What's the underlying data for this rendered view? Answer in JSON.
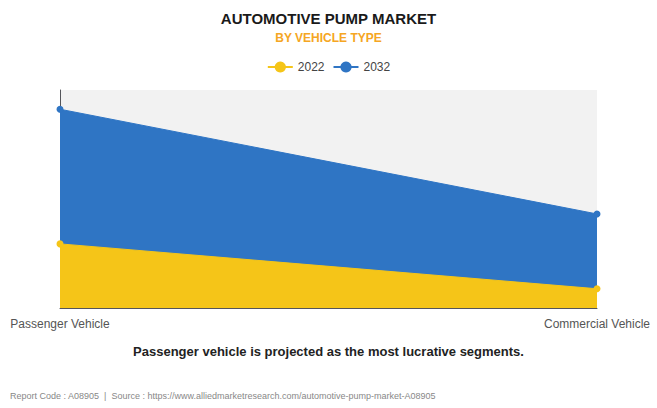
{
  "chart_data": {
    "type": "area",
    "title": "AUTOMOTIVE PUMP MARKET",
    "subtitle": "BY VEHICLE TYPE",
    "categories": [
      "Passenger Vehicle",
      "Commercial Vehicle"
    ],
    "series": [
      {
        "name": "2022",
        "color": "#F5C518",
        "values": [
          0.3,
          0.09
        ]
      },
      {
        "name": "2032",
        "color": "#2F75C4",
        "values": [
          0.93,
          0.44
        ]
      }
    ],
    "ylim": [
      0,
      1.02
    ],
    "grid": false,
    "legend": "top",
    "tick_labels": "x",
    "note": "Passenger vehicle is projected as the most lucrative segments.",
    "footer": "Report Code : A08905  |  Source : https://www.alliedmarketresearch.com/automotive-pump-market-A08905"
  }
}
